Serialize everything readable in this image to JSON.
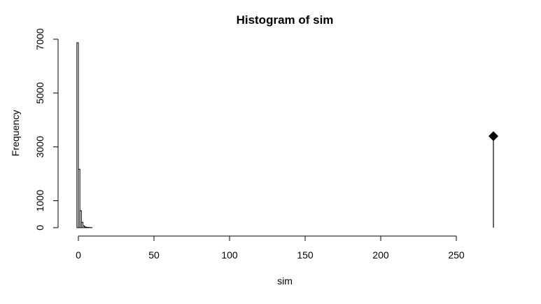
{
  "chart_data": {
    "type": "bar",
    "title": "Histogram of sim",
    "xlabel": "sim",
    "ylabel": "Frequency",
    "xlim": [
      -5,
      275
    ],
    "ylim": [
      0,
      7000
    ],
    "x_ticks": [
      0,
      50,
      100,
      150,
      200,
      250
    ],
    "y_ticks": [
      0,
      1000,
      3000,
      5000,
      7000
    ],
    "bin_width": 1,
    "bins": [
      {
        "start": -1,
        "end": 0,
        "count": 6870
      },
      {
        "start": 0,
        "end": 1,
        "count": 2170
      },
      {
        "start": 1,
        "end": 2,
        "count": 630
      },
      {
        "start": 2,
        "end": 3,
        "count": 200
      },
      {
        "start": 3,
        "end": 4,
        "count": 70
      },
      {
        "start": 4,
        "end": 5,
        "count": 30
      },
      {
        "start": 5,
        "end": 6,
        "count": 15
      },
      {
        "start": 6,
        "end": 7,
        "count": 8
      },
      {
        "start": 7,
        "end": 8,
        "count": 5
      },
      {
        "start": 8,
        "end": 9,
        "count": 3
      }
    ],
    "observed": {
      "x": 275,
      "y": 3400,
      "marker": "diamond"
    },
    "grid": false
  }
}
